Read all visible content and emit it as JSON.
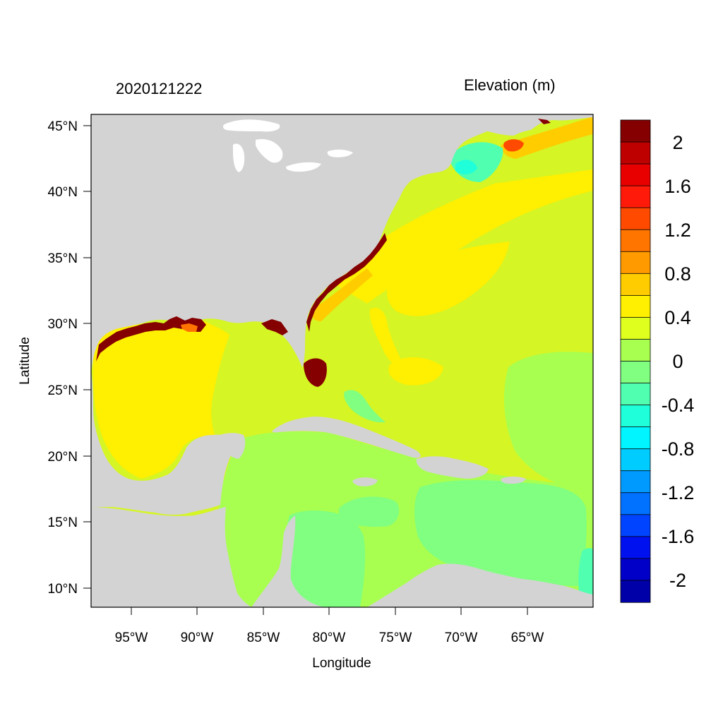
{
  "header": {
    "left_title": "2020121222",
    "right_title": "Elevation (m)"
  },
  "axes": {
    "xlabel": "Longitude",
    "ylabel": "Latitude",
    "x_ticks": [
      "95°W",
      "90°W",
      "85°W",
      "80°W",
      "75°W",
      "70°W",
      "65°W"
    ],
    "x_tick_values": [
      -95,
      -90,
      -85,
      -80,
      -75,
      -70,
      -65
    ],
    "y_ticks": [
      "45°N",
      "40°N",
      "35°N",
      "30°N",
      "25°N",
      "20°N",
      "15°N",
      "10°N"
    ],
    "y_tick_values": [
      45,
      40,
      35,
      30,
      25,
      20,
      15,
      10
    ],
    "lon_range": [
      -98,
      -60
    ],
    "lat_range": [
      8.5,
      46
    ]
  },
  "colorbar": {
    "labels": [
      "2",
      "1.6",
      "1.2",
      "0.8",
      "0.4",
      "0",
      "-0.4",
      "-0.8",
      "-1.2",
      "-1.6",
      "-2"
    ],
    "colors": [
      "#850000",
      "#bf0000",
      "#e80000",
      "#ff1a0a",
      "#ff4a00",
      "#ff7500",
      "#ff9a00",
      "#ffcc00",
      "#ffef00",
      "#dfff1f",
      "#a8ff50",
      "#80ff80",
      "#50ffb0",
      "#1fffd9",
      "#00f5ff",
      "#00ccff",
      "#009aff",
      "#0072ff",
      "#0044ff",
      "#0011f0",
      "#0000c8",
      "#0000a8"
    ]
  },
  "colors": {
    "land": "#d3d3d3",
    "lakes": "#ffffff"
  }
}
